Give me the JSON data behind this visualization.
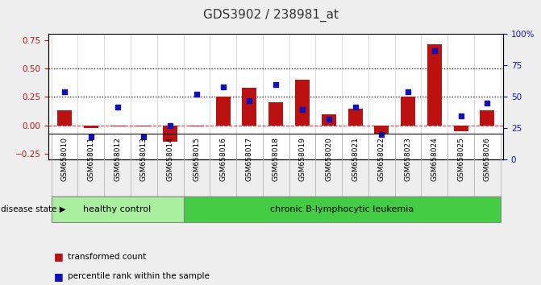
{
  "title": "GDS3902 / 238981_at",
  "samples": [
    "GSM658010",
    "GSM658011",
    "GSM658012",
    "GSM658013",
    "GSM658014",
    "GSM658015",
    "GSM658016",
    "GSM658017",
    "GSM658018",
    "GSM658019",
    "GSM658020",
    "GSM658021",
    "GSM658022",
    "GSM658023",
    "GSM658024",
    "GSM658025",
    "GSM658026"
  ],
  "bar_values": [
    0.13,
    -0.02,
    -0.01,
    -0.01,
    -0.14,
    -0.01,
    0.25,
    0.33,
    0.2,
    0.4,
    0.1,
    0.15,
    -0.07,
    0.25,
    0.71,
    -0.05,
    0.13
  ],
  "blue_values_pct": [
    54,
    18,
    42,
    18,
    27,
    52,
    58,
    47,
    60,
    40,
    32,
    42,
    20,
    54,
    87,
    35,
    45
  ],
  "left_ylim": [
    -0.3,
    0.8
  ],
  "right_ylim": [
    0,
    100
  ],
  "left_yticks": [
    -0.25,
    0,
    0.25,
    0.5,
    0.75
  ],
  "right_yticks": [
    0,
    25,
    50,
    75,
    100
  ],
  "right_yticklabels": [
    "0",
    "25",
    "50",
    "75",
    "100%"
  ],
  "dotted_lines": [
    0.25,
    0.5
  ],
  "bar_color": "#bb1111",
  "blue_color": "#1111bb",
  "zero_line_color": "#cc4444",
  "healthy_control_count": 5,
  "group_labels": [
    "healthy control",
    "chronic B-lymphocytic leukemia"
  ],
  "hc_color": "#aaeea0",
  "cl_color": "#44cc44",
  "group_bar_bg": "#cccccc",
  "disease_state_label": "disease state",
  "legend_bar_label": "transformed count",
  "legend_blue_label": "percentile rank within the sample",
  "title_fontsize": 11,
  "bg_color": "#eeeeee",
  "plot_bg": "#ffffff"
}
